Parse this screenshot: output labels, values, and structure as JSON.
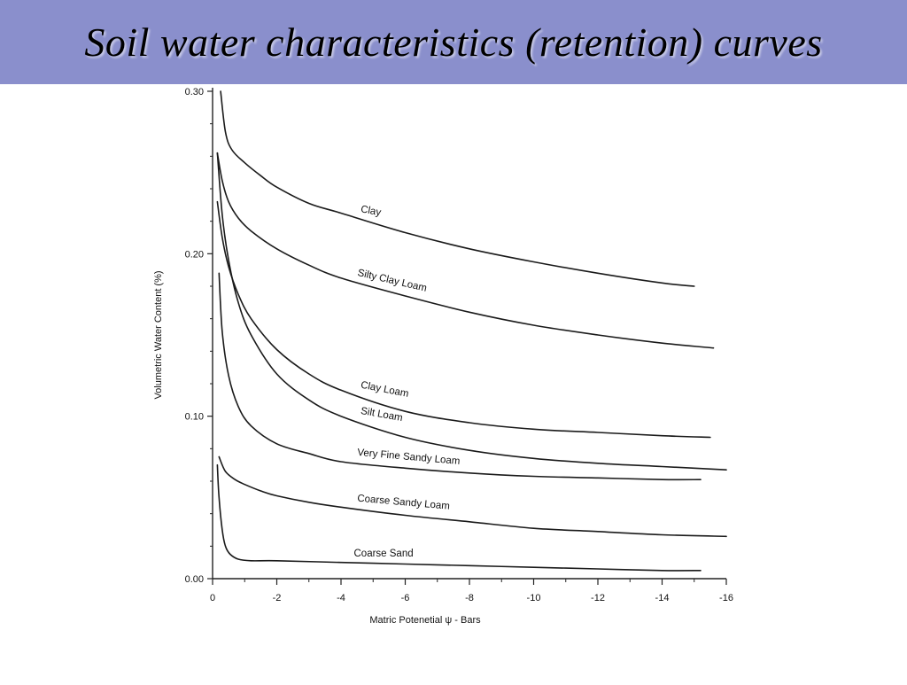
{
  "slide": {
    "title": "Soil water characteristics (retention) curves"
  },
  "chart_data": {
    "type": "line",
    "title": "",
    "xlabel": "Matric Potenetial ψ - Bars",
    "ylabel": "Volumetric Water Content (%)",
    "xlim": [
      0,
      -16
    ],
    "ylim": [
      0.0,
      0.3
    ],
    "x_ticks": [
      0,
      -2,
      -4,
      -6,
      -8,
      -10,
      -12,
      -14,
      -16
    ],
    "x_tick_labels": [
      "0",
      "-2",
      "-4",
      "-6",
      "-8",
      "-10",
      "-12",
      "-14",
      "-16"
    ],
    "y_ticks": [
      0.0,
      0.1,
      0.2,
      0.3
    ],
    "y_tick_labels": [
      "0.00",
      "0.10",
      "0.20",
      "0.30"
    ],
    "grid": false,
    "series": [
      {
        "name": "Clay",
        "x": [
          -0.25,
          -0.4,
          -0.6,
          -1.0,
          -1.5,
          -2.0,
          -3.0,
          -4.0,
          -6.0,
          -8.0,
          -10.0,
          -12.0,
          -14.0,
          -15.0
        ],
        "y": [
          0.3,
          0.275,
          0.264,
          0.256,
          0.248,
          0.241,
          0.231,
          0.225,
          0.213,
          0.203,
          0.195,
          0.188,
          0.182,
          0.18
        ]
      },
      {
        "name": "Silty Clay Loam",
        "x": [
          -0.15,
          -0.3,
          -0.5,
          -0.8,
          -1.2,
          -2.0,
          -3.0,
          -4.0,
          -6.0,
          -8.0,
          -10.0,
          -12.0,
          -14.0,
          -15.6
        ],
        "y": [
          0.262,
          0.245,
          0.232,
          0.222,
          0.214,
          0.203,
          0.193,
          0.185,
          0.174,
          0.164,
          0.156,
          0.15,
          0.145,
          0.142
        ]
      },
      {
        "name": "Clay Loam",
        "x": [
          -0.15,
          -0.3,
          -0.5,
          -0.8,
          -1.2,
          -2.0,
          -3.0,
          -4.0,
          -6.0,
          -8.0,
          -10.0,
          -12.0,
          -14.0,
          -15.5
        ],
        "y": [
          0.232,
          0.21,
          0.192,
          0.175,
          0.16,
          0.141,
          0.126,
          0.116,
          0.103,
          0.096,
          0.092,
          0.09,
          0.088,
          0.087
        ]
      },
      {
        "name": "Silt Loam",
        "x": [
          -0.15,
          -0.3,
          -0.5,
          -0.8,
          -1.2,
          -2.0,
          -3.0,
          -4.0,
          -6.0,
          -8.0,
          -10.0,
          -12.0,
          -14.0,
          -16.0
        ],
        "y": [
          0.262,
          0.224,
          0.196,
          0.17,
          0.15,
          0.126,
          0.11,
          0.1,
          0.087,
          0.079,
          0.074,
          0.071,
          0.069,
          0.067
        ]
      },
      {
        "name": "Very Fine Sandy Loam",
        "x": [
          -0.2,
          -0.3,
          -0.5,
          -0.8,
          -1.2,
          -2.0,
          -3.0,
          -4.0,
          -6.0,
          -8.0,
          -10.0,
          -12.0,
          -14.0,
          -15.2
        ],
        "y": [
          0.188,
          0.152,
          0.125,
          0.106,
          0.094,
          0.083,
          0.077,
          0.072,
          0.068,
          0.065,
          0.063,
          0.062,
          0.061,
          0.061
        ]
      },
      {
        "name": "Coarse Sandy Loam",
        "x": [
          -0.2,
          -0.4,
          -0.7,
          -1.0,
          -1.5,
          -2.0,
          -3.0,
          -4.0,
          -6.0,
          -8.0,
          -10.0,
          -12.0,
          -14.0,
          -16.0
        ],
        "y": [
          0.075,
          0.066,
          0.061,
          0.058,
          0.054,
          0.051,
          0.047,
          0.044,
          0.039,
          0.035,
          0.031,
          0.029,
          0.027,
          0.026
        ]
      },
      {
        "name": "Coarse Sand",
        "x": [
          -0.15,
          -0.2,
          -0.3,
          -0.4,
          -0.55,
          -0.8,
          -1.2,
          -2.0,
          -4.0,
          -6.0,
          -8.0,
          -10.0,
          -12.0,
          -14.0,
          -15.2
        ],
        "y": [
          0.07,
          0.05,
          0.03,
          0.02,
          0.015,
          0.012,
          0.011,
          0.011,
          0.01,
          0.009,
          0.008,
          0.007,
          0.006,
          0.005,
          0.005
        ]
      }
    ]
  }
}
